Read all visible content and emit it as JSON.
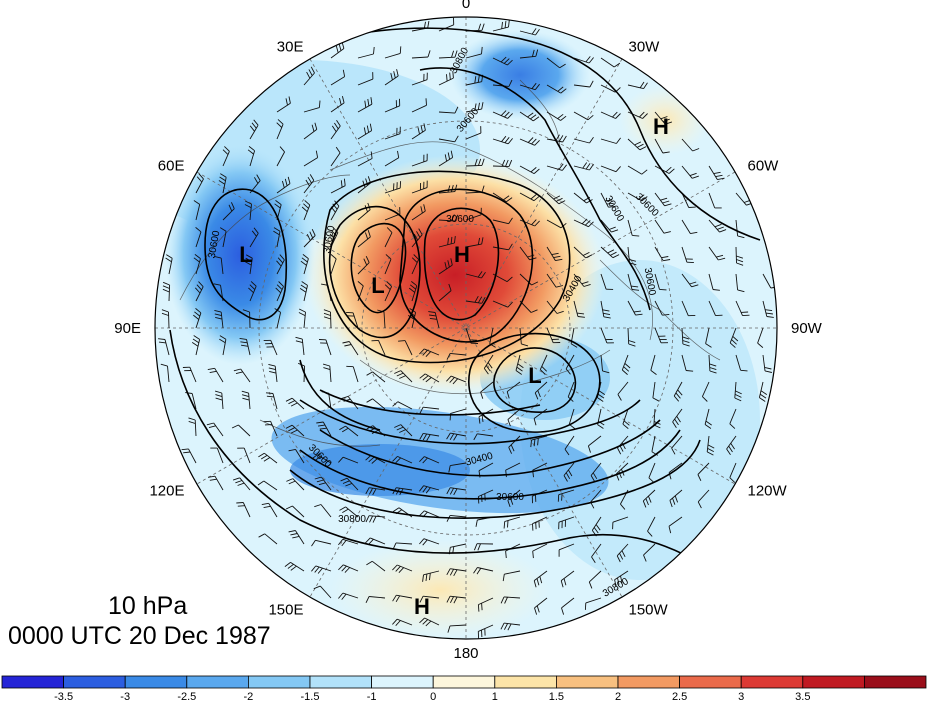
{
  "longitude_labels": [
    {
      "text": "0",
      "angle_deg": 0
    },
    {
      "text": "30W",
      "angle_deg": 30
    },
    {
      "text": "60W",
      "angle_deg": 60
    },
    {
      "text": "90W",
      "angle_deg": 90
    },
    {
      "text": "120W",
      "angle_deg": 120
    },
    {
      "text": "150W",
      "angle_deg": 150
    },
    {
      "text": "180",
      "angle_deg": 180
    },
    {
      "text": "150E",
      "angle_deg": 210
    },
    {
      "text": "120E",
      "angle_deg": 240
    },
    {
      "text": "90E",
      "angle_deg": 270
    },
    {
      "text": "60E",
      "angle_deg": 300
    },
    {
      "text": "30E",
      "angle_deg": 330
    }
  ],
  "pressure_centers": [
    {
      "type": "H",
      "desc": "north-atlantic high"
    },
    {
      "type": "H",
      "desc": "polar high"
    },
    {
      "type": "L",
      "desc": "siberian low"
    },
    {
      "type": "L",
      "desc": "arctic low"
    },
    {
      "type": "L",
      "desc": "canadian low"
    },
    {
      "type": "H",
      "desc": "pacific high"
    }
  ],
  "contour_labels": [
    "30800",
    "30600",
    "30600",
    "30600",
    "30600",
    "30400",
    "30400",
    "30600",
    "30600",
    "30800",
    "30800",
    "30600",
    "30600",
    "30600"
  ],
  "title": {
    "level": "10 hPa",
    "time": "0000 UTC 20 Dec 1987"
  },
  "colorbar": {
    "colors": [
      "#2424d6",
      "#2c5ee0",
      "#3a8ae6",
      "#5aa8ee",
      "#84c8f4",
      "#b2e2fa",
      "#dcf4fd",
      "#fdf6dc",
      "#fce4a8",
      "#f8c080",
      "#f29a62",
      "#ea6a4a",
      "#dc3a34",
      "#c01a22",
      "#9a0e1a"
    ],
    "ticks": [
      "-3.5",
      "-3",
      "-2.5",
      "-2",
      "-1.5",
      "-1",
      "0",
      "1",
      "1.5",
      "2",
      "2.5",
      "3",
      "3.5"
    ]
  }
}
